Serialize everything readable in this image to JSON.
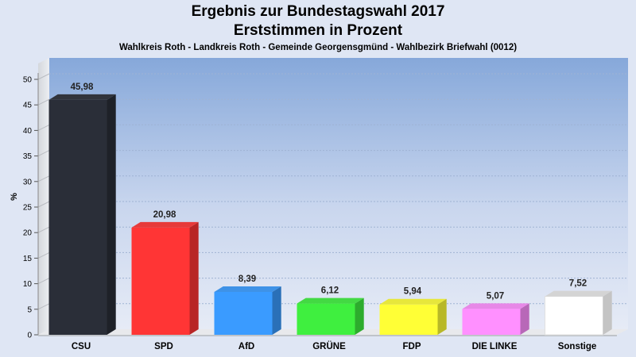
{
  "header": {
    "title_line1": "Ergebnis zur Bundestagswahl 2017",
    "title_line2": "Erststimmen in Prozent",
    "subtitle": "Wahlkreis Roth - Landkreis Roth - Gemeinde Georgensgmünd - Wahlbezirk Briefwahl (0012)"
  },
  "chart_data": {
    "type": "bar",
    "title": "Ergebnis zur Bundestagswahl 2017 Erststimmen in Prozent",
    "subtitle": "Wahlkreis Roth - Landkreis Roth - Gemeinde Georgensgmünd - Wahlbezirk Briefwahl (0012)",
    "xlabel": "",
    "ylabel": "%",
    "ylim": [
      0,
      50
    ],
    "yticks": [
      0,
      5,
      10,
      15,
      20,
      25,
      30,
      35,
      40,
      45,
      50
    ],
    "grid": true,
    "categories": [
      "CSU",
      "SPD",
      "AfD",
      "GRÜNE",
      "FDP",
      "DIE LINKE",
      "Sonstige"
    ],
    "values": [
      45.98,
      20.98,
      8.39,
      6.12,
      5.94,
      5.07,
      7.52
    ],
    "value_labels": [
      "45,98",
      "20,98",
      "8,39",
      "6,12",
      "5,94",
      "5,07",
      "7,52"
    ],
    "colors": [
      "#2a2e38",
      "#ff3535",
      "#3a9bff",
      "#3fef3f",
      "#ffff36",
      "#ff90ff",
      "#ffffff"
    ]
  }
}
